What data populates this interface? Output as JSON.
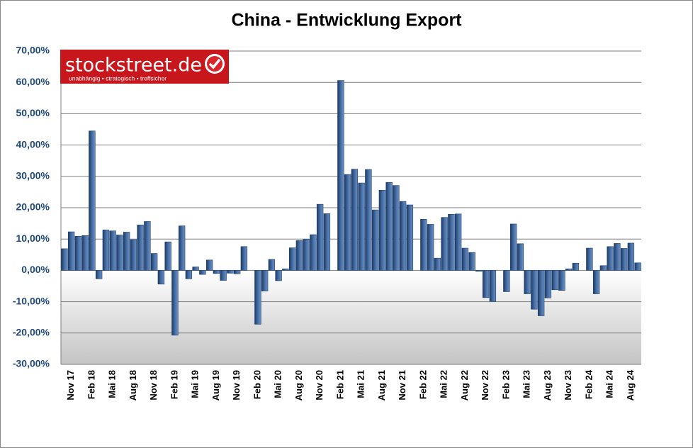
{
  "chart_data": {
    "type": "bar",
    "title": "China - Entwicklung Export",
    "logo": {
      "name": "stockstreet.de",
      "slogan": "unabhängig • strategisch • treffsicher"
    },
    "categories": [
      null,
      "Nov 17",
      null,
      null,
      "Feb 18",
      null,
      null,
      "Mai 18",
      null,
      null,
      "Aug 18",
      null,
      null,
      "Nov 18",
      null,
      null,
      "Feb 19",
      null,
      null,
      "Mai 19",
      null,
      null,
      "Aug 19",
      null,
      null,
      "Nov 19",
      null,
      null,
      "Feb 20",
      null,
      null,
      "Mai 20",
      null,
      null,
      "Aug 20",
      null,
      null,
      "Nov 20",
      null,
      null,
      "Feb 21",
      null,
      null,
      "Mai 21",
      null,
      null,
      "Aug 21",
      null,
      null,
      "Nov 21",
      null,
      null,
      "Feb 22",
      null,
      null,
      "Mai 22",
      null,
      null,
      "Aug 22",
      null,
      null,
      "Nov 22",
      null,
      null,
      "Feb 23",
      null,
      null,
      "Mai 23",
      null,
      null,
      "Aug 23",
      null,
      null,
      "Nov 23",
      null,
      null,
      "Feb 24",
      null,
      null,
      "Mai 24",
      null,
      null,
      "Aug 24",
      null
    ],
    "values": [
      6.9,
      12.3,
      10.9,
      11.1,
      44.5,
      -2.7,
      12.9,
      12.6,
      11.3,
      12.2,
      9.8,
      14.5,
      15.6,
      5.4,
      -4.4,
      9.1,
      -20.7,
      14.2,
      -2.7,
      1.1,
      -1.3,
      3.3,
      -1.0,
      -3.2,
      -0.9,
      -1.1,
      7.6,
      null,
      -17.2,
      -6.6,
      3.5,
      -3.3,
      0.5,
      7.2,
      9.5,
      9.9,
      11.4,
      21.1,
      18.1,
      null,
      60.6,
      30.6,
      32.3,
      27.9,
      32.2,
      19.3,
      25.6,
      28.1,
      27.1,
      22.0,
      20.9,
      null,
      16.3,
      14.7,
      3.9,
      16.9,
      17.9,
      18.0,
      7.1,
      5.7,
      -0.3,
      -8.7,
      -9.9,
      null,
      -6.8,
      14.8,
      8.5,
      -7.5,
      -12.4,
      -14.5,
      -8.8,
      -6.2,
      -6.4,
      0.5,
      2.3,
      null,
      7.1,
      -7.5,
      1.5,
      7.6,
      8.6,
      7.0,
      8.7,
      2.4
    ],
    "color": "#1f3f6e",
    "ylim": [
      -30,
      70
    ],
    "yticks": [
      {
        "value": -30,
        "label": "-30,00%"
      },
      {
        "value": -20,
        "label": "-20,00%"
      },
      {
        "value": -10,
        "label": "-10,00%"
      },
      {
        "value": 0,
        "label": "0,00%"
      },
      {
        "value": 10,
        "label": "10,00%"
      },
      {
        "value": 20,
        "label": "20,00%"
      },
      {
        "value": 30,
        "label": "30,00%"
      },
      {
        "value": 40,
        "label": "40,00%"
      },
      {
        "value": 50,
        "label": "50,00%"
      },
      {
        "value": 60,
        "label": "60,00%"
      },
      {
        "value": 70,
        "label": "70,00%"
      }
    ],
    "grid": true
  }
}
